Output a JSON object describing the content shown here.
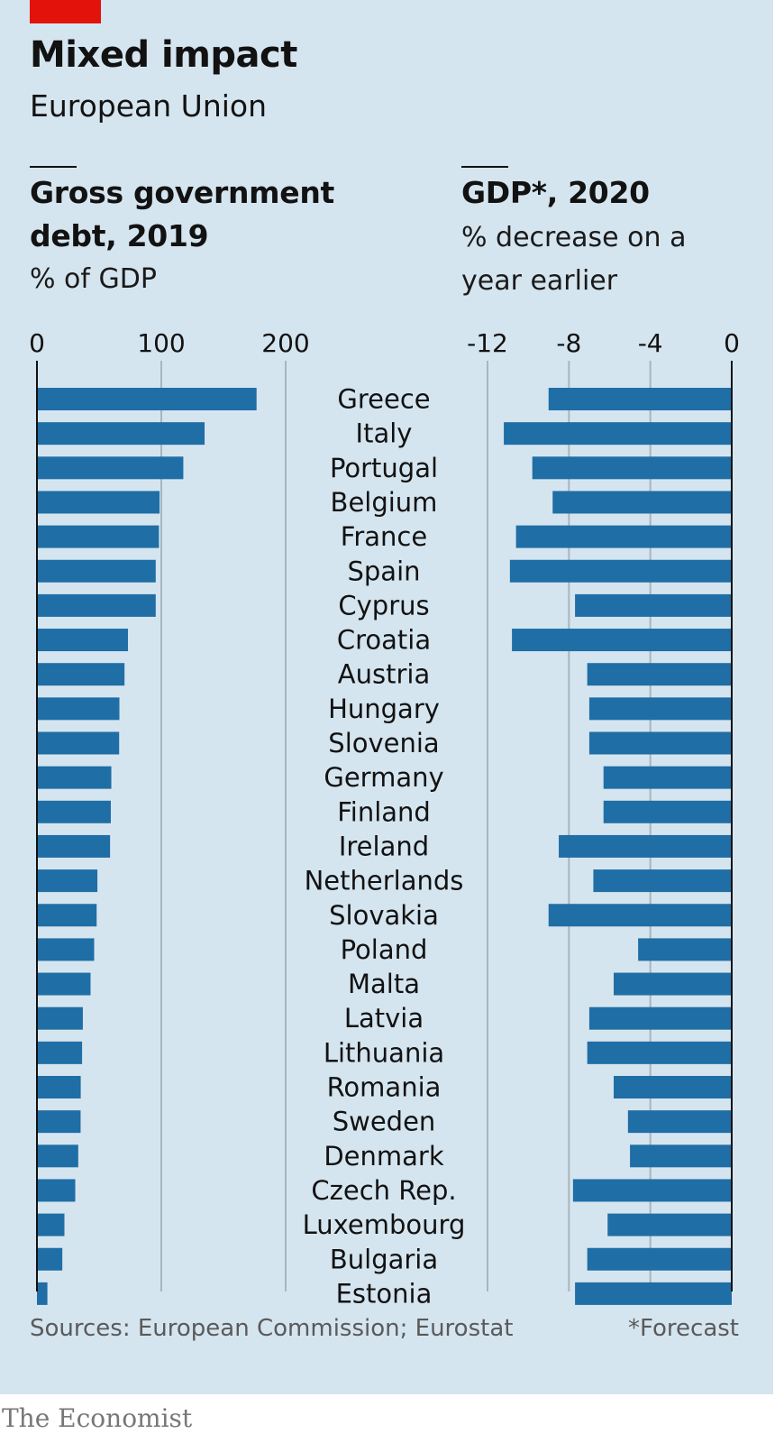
{
  "header": {
    "title": "Mixed impact",
    "subtitle": "European Union"
  },
  "left_panel": {
    "title_line1": "Gross government",
    "title_line2": "debt, 2019",
    "unit": "% of GDP"
  },
  "right_panel": {
    "title": "GDP*, 2020",
    "unit_line1": "% decrease on a",
    "unit_line2": "year earlier"
  },
  "footer": {
    "sources": "Sources: European Commission; Eurostat",
    "note": "*Forecast"
  },
  "brand": "The Economist",
  "colors": {
    "background": "#d5e5ef",
    "bar": "#1f6ea6",
    "accent_red": "#e3120b",
    "gridline": "#a9b5bd"
  },
  "chart_data": [
    {
      "type": "bar",
      "orientation": "horizontal",
      "title": "Gross government debt, 2019",
      "unit": "% of GDP",
      "categories": [
        "Greece",
        "Italy",
        "Portugal",
        "Belgium",
        "France",
        "Spain",
        "Cyprus",
        "Croatia",
        "Austria",
        "Hungary",
        "Slovenia",
        "Germany",
        "Finland",
        "Ireland",
        "Netherlands",
        "Slovakia",
        "Poland",
        "Malta",
        "Latvia",
        "Lithuania",
        "Romania",
        "Sweden",
        "Denmark",
        "Czech Rep.",
        "Luxembourg",
        "Bulgaria",
        "Estonia"
      ],
      "values": [
        176.6,
        134.8,
        117.7,
        98.6,
        98.1,
        95.5,
        95.5,
        73.2,
        70.4,
        66.3,
        66.1,
        59.8,
        59.4,
        58.8,
        48.6,
        48.0,
        46.0,
        43.1,
        36.9,
        36.3,
        35.2,
        35.1,
        33.2,
        30.8,
        22.1,
        20.4,
        8.4
      ],
      "xlim": [
        0,
        200
      ],
      "ticks": [
        0,
        100,
        200
      ],
      "tick_labels": [
        "0",
        "100",
        "200"
      ]
    },
    {
      "type": "bar",
      "orientation": "horizontal",
      "title": "GDP*, 2020",
      "unit": "% decrease on a year earlier",
      "categories": [
        "Greece",
        "Italy",
        "Portugal",
        "Belgium",
        "France",
        "Spain",
        "Cyprus",
        "Croatia",
        "Austria",
        "Hungary",
        "Slovenia",
        "Germany",
        "Finland",
        "Ireland",
        "Netherlands",
        "Slovakia",
        "Poland",
        "Malta",
        "Latvia",
        "Lithuania",
        "Romania",
        "Sweden",
        "Denmark",
        "Czech Rep.",
        "Luxembourg",
        "Bulgaria",
        "Estonia"
      ],
      "values": [
        -9.0,
        -11.2,
        -9.8,
        -8.8,
        -10.6,
        -10.9,
        -7.7,
        -10.8,
        -7.1,
        -7.0,
        -7.0,
        -6.3,
        -6.3,
        -8.5,
        -6.8,
        -9.0,
        -4.6,
        -5.8,
        -7.0,
        -7.1,
        -5.8,
        -5.1,
        -5.0,
        -7.8,
        -6.1,
        -7.1,
        -7.7
      ],
      "xlim": [
        -12,
        0
      ],
      "ticks": [
        -12,
        -8,
        -4,
        0
      ],
      "tick_labels": [
        "-12",
        "-8",
        "-4",
        "0"
      ]
    }
  ]
}
